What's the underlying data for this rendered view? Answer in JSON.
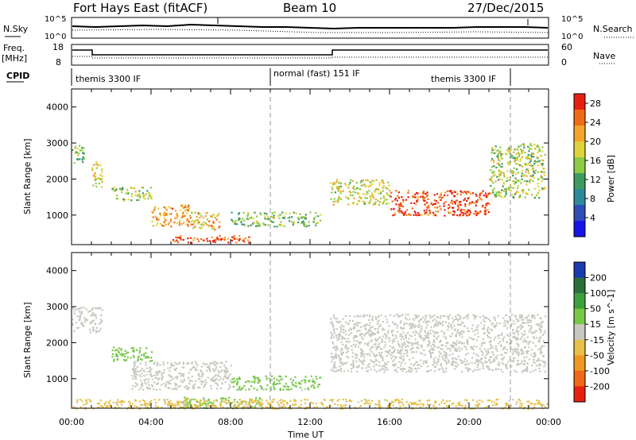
{
  "header": {
    "station": "Fort Hays East (fitACF)",
    "beam": "Beam 10",
    "date": "27/Dec/2015"
  },
  "summary_panels": {
    "nsky_label": "N.Sky",
    "nsky_ticks": [
      "10^5",
      "10^0"
    ],
    "nsearch_label": "N.Search",
    "nsearch_ticks": [
      "10^5",
      "10^0"
    ],
    "freq_label_1": "Freq.",
    "freq_label_2": "[MHz]",
    "freq_ticks": [
      "18",
      "8"
    ],
    "nave_label": "Nave",
    "nave_ticks": [
      "60",
      "0"
    ],
    "cpid_label": "CPID",
    "cpid_segments": [
      "themis 3300 IF",
      "normal (fast) 151 IF",
      "themis 3300 IF"
    ]
  },
  "chart_data": [
    {
      "type": "heatmap",
      "panel": "power",
      "xlabel": "",
      "ylabel": "Slant Range [km]",
      "x_ticks": [
        "00:00",
        "04:00",
        "08:00",
        "12:00",
        "16:00",
        "20:00",
        "00:00"
      ],
      "y_ticks": [
        1000,
        2000,
        3000,
        4000
      ],
      "xlim_hours": [
        0,
        24
      ],
      "ylim_km": [
        180,
        4500
      ],
      "colorbar_label": "Power [dB]",
      "colorbar_ticks": [
        4,
        8,
        12,
        16,
        20,
        24,
        28
      ],
      "colorbar_range": [
        0,
        30
      ],
      "colors": [
        "#1515e6",
        "#2e4eb8",
        "#2e8a9a",
        "#3e9a5e",
        "#8ccc44",
        "#e0d23a",
        "#f4a428",
        "#f06a14",
        "#e62010"
      ],
      "features": [
        {
          "t": [
            0.0,
            0.6
          ],
          "range": [
            2400,
            3000
          ],
          "power": 14
        },
        {
          "t": [
            1.0,
            1.6
          ],
          "range": [
            1800,
            2500
          ],
          "power": 18
        },
        {
          "t": [
            2.0,
            4.0
          ],
          "range": [
            1400,
            1800
          ],
          "power": 16
        },
        {
          "t": [
            4.0,
            6.0
          ],
          "range": [
            700,
            1300
          ],
          "power": 22
        },
        {
          "t": [
            6.0,
            7.5
          ],
          "range": [
            600,
            1100
          ],
          "power": 20
        },
        {
          "t": [
            5.0,
            9.0
          ],
          "range": [
            250,
            450
          ],
          "power": 26
        },
        {
          "t": [
            8.0,
            12.5
          ],
          "range": [
            700,
            1100
          ],
          "power": 14
        },
        {
          "t": [
            13.0,
            16.0
          ],
          "range": [
            1300,
            2000
          ],
          "power": 18
        },
        {
          "t": [
            16.0,
            21.0
          ],
          "range": [
            1000,
            1700
          ],
          "power": 27
        },
        {
          "t": [
            21.0,
            23.8
          ],
          "range": [
            1500,
            3000
          ],
          "power": 16
        }
      ]
    },
    {
      "type": "heatmap",
      "panel": "velocity",
      "xlabel": "Time UT",
      "ylabel": "Slant Range [km]",
      "x_ticks": [
        "00:00",
        "04:00",
        "08:00",
        "12:00",
        "16:00",
        "20:00",
        "00:00"
      ],
      "y_ticks": [
        1000,
        2000,
        3000,
        4000
      ],
      "xlim_hours": [
        0,
        24
      ],
      "ylim_km": [
        180,
        4500
      ],
      "colorbar_label": "Velocity [m s^-1]",
      "colorbar_ticks": [
        "200",
        "100",
        "50",
        "15",
        "-15",
        "-50",
        "-100",
        "-200"
      ],
      "colorbar_range": [
        -250,
        250
      ],
      "colors": [
        "#1a3ab0",
        "#2a6e3a",
        "#3ea03c",
        "#78c848",
        "#c8c8c0",
        "#e8c048",
        "#f09820",
        "#f06818",
        "#e62010"
      ],
      "features": [
        {
          "t": [
            0.0,
            1.5
          ],
          "range": [
            2300,
            3000
          ],
          "velocity": 0
        },
        {
          "t": [
            2.0,
            4.0
          ],
          "range": [
            1500,
            1900
          ],
          "velocity": 50
        },
        {
          "t": [
            3.0,
            8.0
          ],
          "range": [
            700,
            1500
          ],
          "velocity": 0
        },
        {
          "t": [
            5.5,
            9.5
          ],
          "range": [
            200,
            500
          ],
          "velocity": 60
        },
        {
          "t": [
            8.0,
            12.5
          ],
          "range": [
            700,
            1100
          ],
          "velocity": 40
        },
        {
          "t": [
            0.0,
            24.0
          ],
          "range": [
            180,
            450
          ],
          "velocity": -40
        },
        {
          "t": [
            13.0,
            23.8
          ],
          "range": [
            1200,
            2800
          ],
          "velocity": 0
        }
      ]
    }
  ]
}
